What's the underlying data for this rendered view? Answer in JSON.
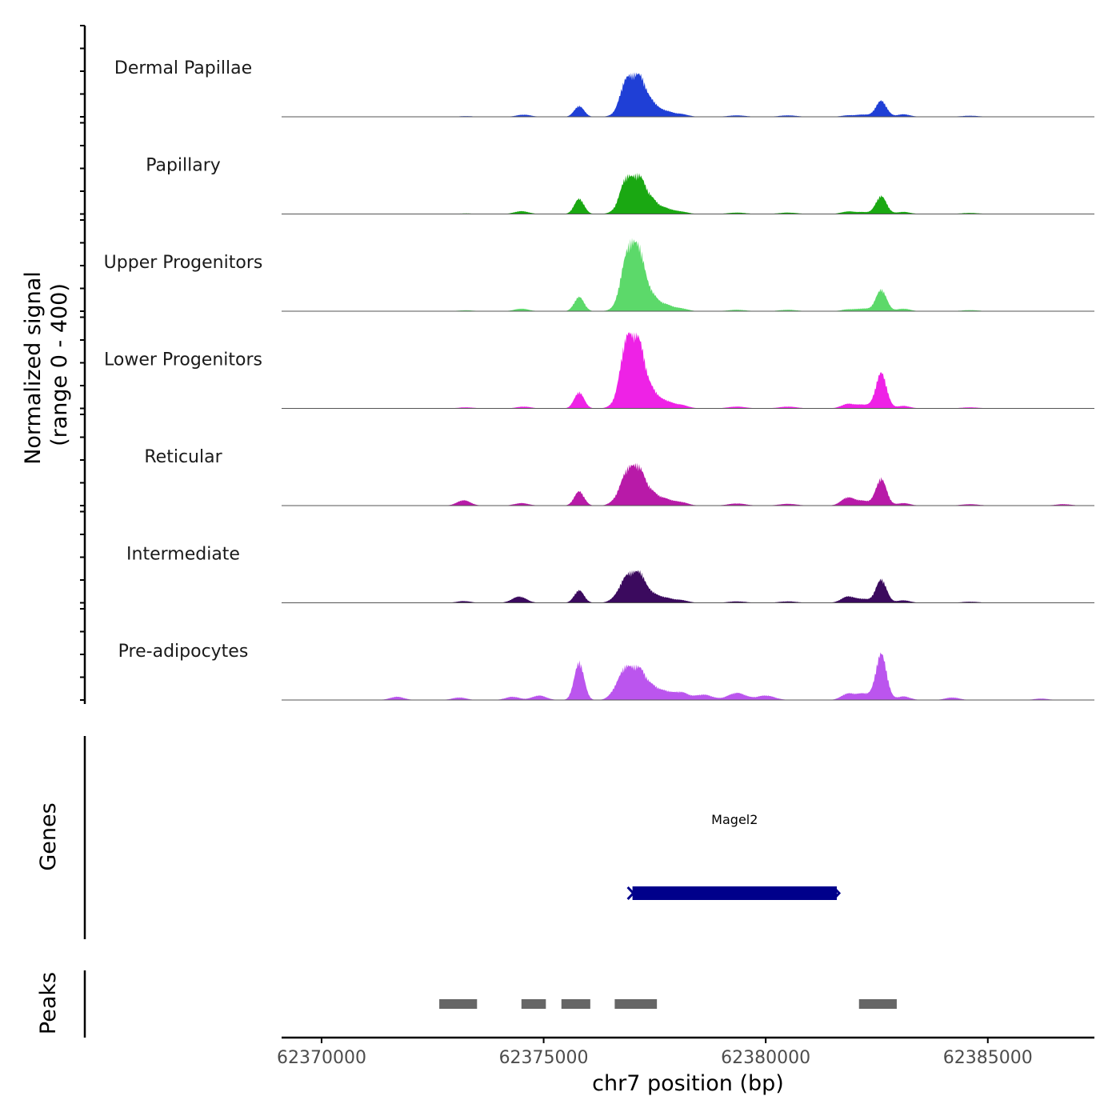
{
  "chart_data": {
    "type": "area",
    "chromosome": "chr7",
    "xlabel": "chr7 position (bp)",
    "ylabel": "Normalized signal",
    "ylabel_sub": "(range 0 - 400)",
    "yrange": [
      0,
      400
    ],
    "xlim": [
      62369100,
      62387400
    ],
    "xticks": [
      62370000,
      62375000,
      62380000,
      62385000
    ],
    "tracks": [
      {
        "name": "Dermal Papillae",
        "color": "#1f3fd6",
        "peaks": [
          [
            62373250,
            4,
            150
          ],
          [
            62374550,
            12,
            160
          ],
          [
            62375800,
            60,
            110
          ],
          [
            62376650,
            14,
            140
          ],
          [
            62376800,
            90,
            110
          ],
          [
            62377000,
            200,
            160
          ],
          [
            62377200,
            110,
            100
          ],
          [
            62377400,
            80,
            130
          ],
          [
            62377700,
            35,
            180
          ],
          [
            62378100,
            14,
            160
          ],
          [
            62379350,
            8,
            200
          ],
          [
            62380500,
            8,
            200
          ],
          [
            62381850,
            8,
            150
          ],
          [
            62382200,
            12,
            150
          ],
          [
            62382600,
            90,
            120
          ],
          [
            62383100,
            14,
            150
          ],
          [
            62384600,
            6,
            200
          ]
        ]
      },
      {
        "name": "Papillary",
        "color": "#1aa812",
        "peaks": [
          [
            62373250,
            3,
            180
          ],
          [
            62374500,
            16,
            160
          ],
          [
            62375800,
            85,
            110
          ],
          [
            62376650,
            18,
            140
          ],
          [
            62376800,
            90,
            110
          ],
          [
            62377000,
            180,
            160
          ],
          [
            62377200,
            100,
            100
          ],
          [
            62377400,
            80,
            130
          ],
          [
            62377700,
            35,
            180
          ],
          [
            62378100,
            12,
            160
          ],
          [
            62379350,
            8,
            200
          ],
          [
            62380500,
            8,
            200
          ],
          [
            62381850,
            14,
            150
          ],
          [
            62382200,
            10,
            150
          ],
          [
            62382600,
            100,
            120
          ],
          [
            62383100,
            12,
            150
          ],
          [
            62384600,
            6,
            200
          ]
        ]
      },
      {
        "name": "Upper Progenitors",
        "color": "#5cd96a",
        "peaks": [
          [
            62373250,
            5,
            180
          ],
          [
            62374500,
            14,
            160
          ],
          [
            62375800,
            80,
            110
          ],
          [
            62376650,
            18,
            140
          ],
          [
            62376800,
            100,
            110
          ],
          [
            62377000,
            350,
            160
          ],
          [
            62377200,
            140,
            100
          ],
          [
            62377400,
            90,
            130
          ],
          [
            62377700,
            40,
            180
          ],
          [
            62378100,
            14,
            160
          ],
          [
            62379350,
            8,
            200
          ],
          [
            62380500,
            8,
            200
          ],
          [
            62381850,
            10,
            150
          ],
          [
            62382200,
            14,
            150
          ],
          [
            62382600,
            120,
            120
          ],
          [
            62383100,
            14,
            150
          ],
          [
            62384600,
            6,
            200
          ]
        ]
      },
      {
        "name": "Lower Progenitors",
        "color": "#ee22e6",
        "peaks": [
          [
            62373250,
            6,
            180
          ],
          [
            62374550,
            10,
            160
          ],
          [
            62375800,
            90,
            110
          ],
          [
            62376650,
            30,
            140
          ],
          [
            62376800,
            150,
            110
          ],
          [
            62377000,
            380,
            160
          ],
          [
            62377200,
            150,
            100
          ],
          [
            62377400,
            100,
            130
          ],
          [
            62377700,
            45,
            180
          ],
          [
            62378100,
            18,
            160
          ],
          [
            62379350,
            10,
            200
          ],
          [
            62380500,
            10,
            200
          ],
          [
            62381850,
            25,
            150
          ],
          [
            62382200,
            20,
            150
          ],
          [
            62382600,
            200,
            120
          ],
          [
            62383100,
            14,
            150
          ],
          [
            62384600,
            6,
            200
          ]
        ]
      },
      {
        "name": "Reticular",
        "color": "#b81aa8",
        "peaks": [
          [
            62373200,
            30,
            150
          ],
          [
            62374500,
            14,
            160
          ],
          [
            62375800,
            80,
            110
          ],
          [
            62376650,
            30,
            140
          ],
          [
            62376800,
            60,
            110
          ],
          [
            62377000,
            200,
            160
          ],
          [
            62377200,
            90,
            100
          ],
          [
            62377400,
            70,
            130
          ],
          [
            62377700,
            40,
            180
          ],
          [
            62378100,
            18,
            160
          ],
          [
            62379350,
            12,
            200
          ],
          [
            62380500,
            10,
            200
          ],
          [
            62381850,
            45,
            150
          ],
          [
            62382200,
            25,
            150
          ],
          [
            62382600,
            150,
            120
          ],
          [
            62383100,
            14,
            150
          ],
          [
            62384600,
            8,
            200
          ],
          [
            62386700,
            8,
            180
          ]
        ]
      },
      {
        "name": "Intermediate",
        "color": "#3b0a5e",
        "peaks": [
          [
            62373200,
            10,
            150
          ],
          [
            62374450,
            35,
            160
          ],
          [
            62375800,
            70,
            110
          ],
          [
            62376650,
            30,
            140
          ],
          [
            62376800,
            50,
            110
          ],
          [
            62377000,
            150,
            160
          ],
          [
            62377200,
            80,
            100
          ],
          [
            62377400,
            50,
            130
          ],
          [
            62377700,
            30,
            180
          ],
          [
            62378100,
            14,
            160
          ],
          [
            62379350,
            8,
            200
          ],
          [
            62380500,
            8,
            200
          ],
          [
            62381850,
            35,
            150
          ],
          [
            62382200,
            20,
            150
          ],
          [
            62382600,
            130,
            120
          ],
          [
            62383100,
            14,
            150
          ],
          [
            62384600,
            6,
            200
          ]
        ]
      },
      {
        "name": "Pre-adipocytes",
        "color": "#bb55ee",
        "peaks": [
          [
            62371700,
            18,
            160
          ],
          [
            62373100,
            14,
            160
          ],
          [
            62374300,
            18,
            160
          ],
          [
            62374900,
            25,
            160
          ],
          [
            62375800,
            210,
            110
          ],
          [
            62376650,
            60,
            140
          ],
          [
            62376800,
            70,
            110
          ],
          [
            62377000,
            160,
            160
          ],
          [
            62377200,
            80,
            100
          ],
          [
            62377400,
            70,
            130
          ],
          [
            62377700,
            50,
            180
          ],
          [
            62378100,
            40,
            160
          ],
          [
            62378600,
            30,
            200
          ],
          [
            62379350,
            40,
            200
          ],
          [
            62380000,
            25,
            200
          ],
          [
            62381850,
            35,
            150
          ],
          [
            62382200,
            35,
            150
          ],
          [
            62382600,
            260,
            120
          ],
          [
            62383100,
            20,
            150
          ],
          [
            62384200,
            14,
            160
          ],
          [
            62386200,
            8,
            160
          ]
        ]
      }
    ],
    "genes": [
      {
        "name": "Magel2",
        "start": 62377000,
        "end": 62381600,
        "strand": "-",
        "color": "#00008b"
      }
    ],
    "peaks": [
      [
        62372650,
        62373500
      ],
      [
        62374500,
        62375050
      ],
      [
        62375400,
        62376050
      ],
      [
        62376600,
        62377550
      ],
      [
        62382100,
        62382950
      ]
    ],
    "genes_label": "Genes",
    "peaks_label": "Peaks"
  }
}
